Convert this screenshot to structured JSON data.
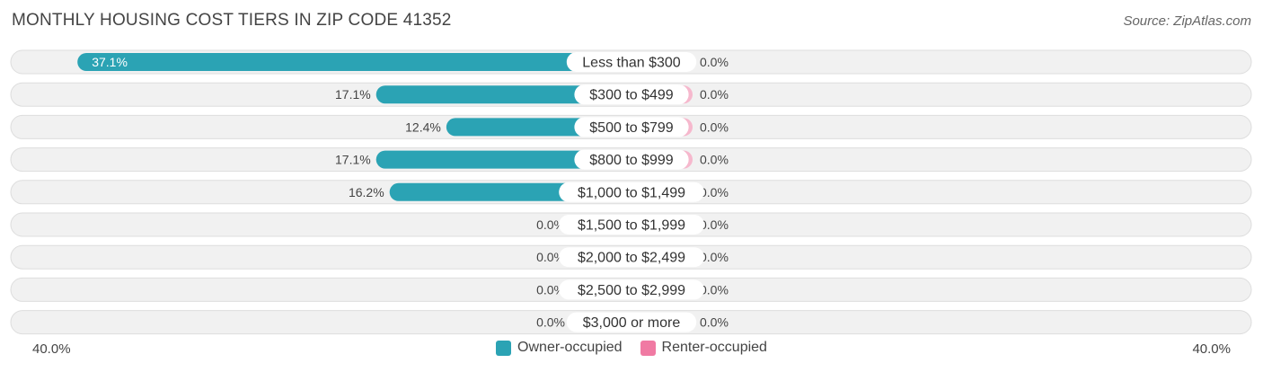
{
  "header": {
    "title": "MONTHLY HOUSING COST TIERS IN ZIP CODE 41352",
    "source": "Source: ZipAtlas.com"
  },
  "axis": {
    "left_label": "40.0%",
    "right_label": "40.0%"
  },
  "legend": {
    "owner_label": "Owner-occupied",
    "renter_label": "Renter-occupied"
  },
  "colors": {
    "owner": "#2ba3b4",
    "owner_light": "#8ecfd9",
    "renter": "#f07aa3",
    "renter_light": "#f6b8cd",
    "row_bg": "#f1f1f1",
    "row_border": "#dddddd"
  },
  "chart_data": {
    "type": "bar",
    "title": "MONTHLY HOUSING COST TIERS IN ZIP CODE 41352",
    "categories": [
      "Less than $300",
      "$300 to $499",
      "$500 to $799",
      "$800 to $999",
      "$1,000 to $1,499",
      "$1,500 to $1,999",
      "$2,000 to $2,499",
      "$2,500 to $2,999",
      "$3,000 or more"
    ],
    "series": [
      {
        "name": "Owner-occupied",
        "values": [
          37.1,
          17.1,
          12.4,
          17.1,
          16.2,
          0.0,
          0.0,
          0.0,
          0.0
        ],
        "labels": [
          "37.1%",
          "17.1%",
          "12.4%",
          "17.1%",
          "16.2%",
          "0.0%",
          "0.0%",
          "0.0%",
          "0.0%"
        ]
      },
      {
        "name": "Renter-occupied",
        "values": [
          0.0,
          0.0,
          0.0,
          0.0,
          0.0,
          0.0,
          0.0,
          0.0,
          0.0
        ],
        "labels": [
          "0.0%",
          "0.0%",
          "0.0%",
          "0.0%",
          "0.0%",
          "0.0%",
          "0.0%",
          "0.0%",
          "0.0%"
        ]
      }
    ],
    "xlim": [
      -40,
      40
    ],
    "legend": "bottom-center",
    "grid": false
  }
}
